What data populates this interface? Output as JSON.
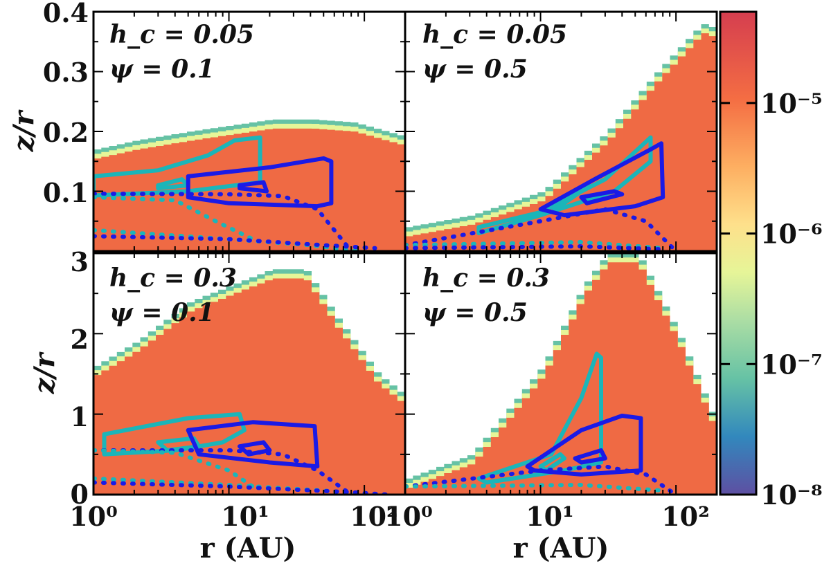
{
  "chart_data": [
    {
      "type": "heatmap",
      "panel": "top-left",
      "annotations": [
        "h_c = 0.05",
        "ψ = 0.1"
      ],
      "xscale": "log",
      "xlim": [
        1,
        200
      ],
      "ylim": [
        0.0,
        0.4
      ],
      "ylabel": "z/r",
      "xlabel": "",
      "yticks": [
        "0.1",
        "0.2",
        "0.3",
        "0.4"
      ],
      "xticks": [],
      "surface_profile": {
        "r": [
          1,
          2,
          5,
          10,
          20,
          40,
          80,
          200
        ],
        "z": [
          0.17,
          0.185,
          0.2,
          0.21,
          0.22,
          0.22,
          0.215,
          0.19
        ]
      },
      "contours": [
        {
          "color": "cyan",
          "style": "solid",
          "points": [
            [
              1,
              0.125
            ],
            [
              3,
              0.135
            ],
            [
              7,
              0.16
            ],
            [
              11,
              0.185
            ],
            [
              17,
              0.19
            ],
            [
              17,
              0.115
            ],
            [
              5,
              0.1
            ],
            [
              1,
              0.093
            ]
          ]
        },
        {
          "color": "cyan",
          "style": "solid",
          "points": [
            [
              3,
              0.11
            ],
            [
              4.5,
              0.12
            ],
            [
              5,
              0.11
            ],
            [
              3,
              0.105
            ]
          ]
        },
        {
          "color": "blue",
          "style": "solid",
          "points": [
            [
              5,
              0.125
            ],
            [
              20,
              0.14
            ],
            [
              50,
              0.155
            ],
            [
              57,
              0.15
            ],
            [
              57,
              0.08
            ],
            [
              45,
              0.075
            ],
            [
              10,
              0.08
            ],
            [
              5,
              0.09
            ]
          ]
        },
        {
          "color": "blue",
          "style": "solid",
          "points": [
            [
              12,
              0.11
            ],
            [
              18,
              0.115
            ],
            [
              19,
              0.1
            ],
            [
              12,
              0.105
            ]
          ]
        },
        {
          "color": "blue",
          "style": "dotted",
          "points": [
            [
              1,
              0.096
            ],
            [
              10,
              0.095
            ],
            [
              25,
              0.092
            ],
            [
              45,
              0.07
            ],
            [
              80,
              0.0
            ]
          ]
        },
        {
          "color": "cyan",
          "style": "dotted",
          "points": [
            [
              1,
              0.09
            ],
            [
              4,
              0.085
            ],
            [
              8,
              0.05
            ],
            [
              15,
              0.02
            ]
          ]
        },
        {
          "color": "cyan",
          "style": "dotted",
          "points": [
            [
              1,
              0.035
            ],
            [
              10,
              0.02
            ],
            [
              40,
              0.01
            ],
            [
              90,
              0.0
            ]
          ]
        },
        {
          "color": "blue",
          "style": "dotted",
          "points": [
            [
              1,
              0.025
            ],
            [
              10,
              0.02
            ],
            [
              50,
              0.01
            ],
            [
              120,
              0.005
            ]
          ]
        }
      ]
    },
    {
      "type": "heatmap",
      "panel": "top-right",
      "annotations": [
        "h_c = 0.05",
        "ψ = 0.5"
      ],
      "xscale": "log",
      "xlim": [
        1,
        200
      ],
      "ylim": [
        0.0,
        0.4
      ],
      "surface_profile": {
        "r": [
          1,
          3,
          10,
          30,
          70,
          150,
          200
        ],
        "z": [
          0.04,
          0.06,
          0.1,
          0.2,
          0.3,
          0.38,
          0.37
        ]
      },
      "contours": [
        {
          "color": "cyan",
          "style": "solid",
          "points": [
            [
              3.5,
              0.04
            ],
            [
              10,
              0.065
            ],
            [
              30,
              0.12
            ],
            [
              65,
              0.19
            ],
            [
              65,
              0.15
            ],
            [
              35,
              0.1
            ],
            [
              10,
              0.06
            ],
            [
              3.5,
              0.03
            ]
          ]
        },
        {
          "color": "cyan",
          "style": "solid",
          "points": [
            [
              12,
              0.075
            ],
            [
              20,
              0.1
            ],
            [
              23,
              0.11
            ],
            [
              13,
              0.07
            ]
          ]
        },
        {
          "color": "blue",
          "style": "solid",
          "points": [
            [
              10,
              0.07
            ],
            [
              25,
              0.12
            ],
            [
              65,
              0.17
            ],
            [
              78,
              0.18
            ],
            [
              80,
              0.09
            ],
            [
              50,
              0.075
            ],
            [
              15,
              0.06
            ]
          ]
        },
        {
          "color": "blue",
          "style": "solid",
          "points": [
            [
              20,
              0.09
            ],
            [
              35,
              0.1
            ],
            [
              40,
              0.095
            ],
            [
              22,
              0.08
            ]
          ]
        },
        {
          "color": "blue",
          "style": "dotted",
          "points": [
            [
              1,
              0.01
            ],
            [
              10,
              0.05
            ],
            [
              30,
              0.07
            ],
            [
              60,
              0.05
            ],
            [
              100,
              0.0
            ]
          ]
        },
        {
          "color": "cyan",
          "style": "dotted",
          "points": [
            [
              1,
              0.01
            ],
            [
              20,
              0.015
            ],
            [
              80,
              0.005
            ]
          ]
        },
        {
          "color": "blue",
          "style": "dotted",
          "points": [
            [
              1,
              0.005
            ],
            [
              20,
              0.008
            ],
            [
              80,
              0.003
            ]
          ]
        }
      ]
    },
    {
      "type": "heatmap",
      "panel": "bottom-left",
      "annotations": [
        "h_c = 0.3",
        "ψ = 0.1"
      ],
      "xscale": "log",
      "xlim": [
        1,
        200
      ],
      "ylim": [
        0,
        3
      ],
      "ylabel": "z/r",
      "xlabel": "r (AU)",
      "yticks": [
        "0",
        "1",
        "2",
        "3"
      ],
      "xticks": [
        "10⁰",
        "10¹",
        "10²"
      ],
      "surface_profile": {
        "r": [
          1,
          2,
          5,
          10,
          20,
          35,
          60,
          120,
          200
        ],
        "z": [
          1.6,
          1.9,
          2.4,
          2.6,
          2.8,
          2.8,
          2.2,
          1.5,
          1.2
        ]
      },
      "contours": [
        {
          "color": "cyan",
          "style": "solid",
          "points": [
            [
              1.2,
              0.75
            ],
            [
              5,
              0.95
            ],
            [
              12,
              1.0
            ],
            [
              13,
              0.8
            ],
            [
              9,
              0.65
            ],
            [
              4,
              0.55
            ],
            [
              1.2,
              0.5
            ]
          ]
        },
        {
          "color": "cyan",
          "style": "solid",
          "points": [
            [
              3,
              0.65
            ],
            [
              5.5,
              0.7
            ],
            [
              6,
              0.6
            ],
            [
              3.5,
              0.55
            ]
          ]
        },
        {
          "color": "blue",
          "style": "solid",
          "points": [
            [
              5,
              0.8
            ],
            [
              15,
              0.9
            ],
            [
              43,
              0.85
            ],
            [
              45,
              0.35
            ],
            [
              20,
              0.4
            ],
            [
              6,
              0.5
            ]
          ]
        },
        {
          "color": "blue",
          "style": "solid",
          "points": [
            [
              12,
              0.6
            ],
            [
              18,
              0.65
            ],
            [
              20,
              0.55
            ],
            [
              14,
              0.5
            ]
          ]
        },
        {
          "color": "blue",
          "style": "dotted",
          "points": [
            [
              1,
              0.55
            ],
            [
              10,
              0.55
            ],
            [
              25,
              0.5
            ],
            [
              45,
              0.3
            ],
            [
              80,
              0.0
            ]
          ]
        },
        {
          "color": "cyan",
          "style": "dotted",
          "points": [
            [
              1,
              0.55
            ],
            [
              4,
              0.52
            ],
            [
              10,
              0.3
            ],
            [
              15,
              0.1
            ]
          ]
        },
        {
          "color": "cyan",
          "style": "dotted",
          "points": [
            [
              1,
              0.2
            ],
            [
              10,
              0.12
            ],
            [
              50,
              0.05
            ],
            [
              110,
              0.0
            ]
          ]
        },
        {
          "color": "blue",
          "style": "dotted",
          "points": [
            [
              1,
              0.15
            ],
            [
              10,
              0.1
            ],
            [
              80,
              0.03
            ],
            [
              150,
              0.0
            ]
          ]
        }
      ]
    },
    {
      "type": "heatmap",
      "panel": "bottom-right",
      "annotations": [
        "h_c = 0.3",
        "ψ = 0.5"
      ],
      "xscale": "log",
      "xlim": [
        1,
        200
      ],
      "ylim": [
        0,
        3
      ],
      "xlabel": "r (AU)",
      "xticks": [
        "10⁰",
        "10¹",
        "10²"
      ],
      "surface_profile": {
        "r": [
          1,
          3,
          10,
          20,
          30,
          50,
          100,
          200
        ],
        "z": [
          0.2,
          0.5,
          1.6,
          2.6,
          3.0,
          3.0,
          2.0,
          0.8
        ]
      },
      "contours": [
        {
          "color": "cyan",
          "style": "solid",
          "points": [
            [
              3.5,
              0.2
            ],
            [
              12,
              0.5
            ],
            [
              20,
              1.2
            ],
            [
              26,
              1.75
            ],
            [
              28,
              1.7
            ],
            [
              28,
              0.4
            ],
            [
              15,
              0.3
            ],
            [
              4,
              0.15
            ]
          ]
        },
        {
          "color": "cyan",
          "style": "solid",
          "points": [
            [
              10,
              0.35
            ],
            [
              14,
              0.5
            ],
            [
              15,
              0.45
            ],
            [
              11,
              0.3
            ]
          ]
        },
        {
          "color": "blue",
          "style": "solid",
          "points": [
            [
              8,
              0.35
            ],
            [
              20,
              0.8
            ],
            [
              40,
              0.98
            ],
            [
              55,
              0.95
            ],
            [
              55,
              0.3
            ],
            [
              20,
              0.25
            ],
            [
              9,
              0.3
            ]
          ]
        },
        {
          "color": "blue",
          "style": "solid",
          "points": [
            [
              18,
              0.45
            ],
            [
              28,
              0.55
            ],
            [
              30,
              0.45
            ],
            [
              20,
              0.4
            ]
          ]
        },
        {
          "color": "blue",
          "style": "dotted",
          "points": [
            [
              1,
              0.1
            ],
            [
              10,
              0.3
            ],
            [
              30,
              0.35
            ],
            [
              60,
              0.25
            ],
            [
              100,
              0.0
            ]
          ]
        },
        {
          "color": "cyan",
          "style": "dotted",
          "points": [
            [
              1,
              0.1
            ],
            [
              20,
              0.12
            ],
            [
              80,
              0.05
            ]
          ]
        }
      ]
    }
  ],
  "colorbar": {
    "scale": "log",
    "range": [
      1e-08,
      5e-05
    ],
    "tick_values": [
      1e-08,
      1e-07,
      1e-06,
      1e-05
    ],
    "labels": [
      "10⁻⁸",
      "10⁻⁷",
      "10⁻⁶",
      "10⁻⁵"
    ],
    "colors": [
      "#5e4fa2",
      "#3288bd",
      "#66c2a5",
      "#abdda4",
      "#e6f598",
      "#fee08b",
      "#fdae61",
      "#f46d43",
      "#d53e4f"
    ]
  },
  "colors": {
    "heat_main": "#ef6a44",
    "heat_hot": "#e2563f",
    "contour_blue": "#1a1ae6",
    "contour_cyan": "#1bb5b9"
  },
  "text": {
    "p1_l1": "h_c = 0.05",
    "p1_l2": "ψ = 0.1",
    "p2_l1": "h_c = 0.05",
    "p2_l2": "ψ = 0.5",
    "p3_l1": "h_c = 0.3",
    "p3_l2": "ψ = 0.1",
    "p4_l1": "h_c = 0.3",
    "p4_l2": "ψ = 0.5",
    "ylabel_top": "z/r",
    "ylabel_bottom": "z/r",
    "xlabel_left": "r (AU)",
    "xlabel_right": "r (AU)",
    "ytick_top": [
      "0.1",
      "0.2",
      "0.3",
      "0.4"
    ],
    "ytick_bottom": [
      "0",
      "1",
      "2",
      "3"
    ],
    "xtick": [
      "10⁰",
      "10¹",
      "10²"
    ]
  }
}
